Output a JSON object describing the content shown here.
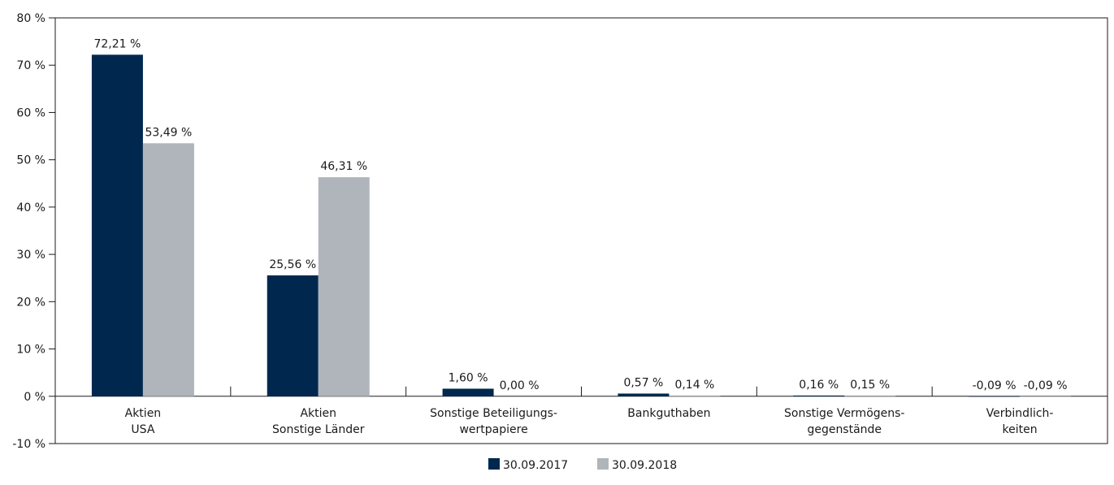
{
  "chart_data": {
    "type": "bar",
    "categories": [
      [
        "Aktien",
        "USA"
      ],
      [
        "Aktien",
        "Sonstige Länder"
      ],
      [
        "Sonstige Beteiligungs-",
        "wertpapiere"
      ],
      [
        "Bankguthaben"
      ],
      [
        "Sonstige Vermögens-",
        "gegenstände"
      ],
      [
        "Verbindlich-",
        "keiten"
      ]
    ],
    "series": [
      {
        "name": "30.09.2017",
        "color": "#00284f",
        "values": [
          72.21,
          25.56,
          1.6,
          0.57,
          0.16,
          -0.09
        ],
        "labels": [
          "72,21 %",
          "25,56 %",
          "1,60 %",
          "0,57 %",
          "0,16 %",
          "-0,09 %"
        ]
      },
      {
        "name": "30.09.2018",
        "color": "#b0b5bb",
        "values": [
          53.49,
          46.31,
          0.0,
          0.14,
          0.15,
          -0.09
        ],
        "labels": [
          "53,49 %",
          "46,31 %",
          "0,00 %",
          "0,14 %",
          "0,15 %",
          "-0,09 %"
        ]
      }
    ],
    "ylim": [
      -10,
      80
    ],
    "yticks": [
      80,
      70,
      60,
      50,
      40,
      30,
      20,
      10,
      0,
      -10
    ],
    "ytick_labels": [
      "80 %",
      "70 %",
      "60 %",
      "50 %",
      "40 %",
      "30 %",
      "20 %",
      "10 %",
      "0 %",
      "-10 %"
    ],
    "title": "",
    "xlabel": "",
    "ylabel": "",
    "grid": false,
    "legend_position": "bottom-center"
  }
}
